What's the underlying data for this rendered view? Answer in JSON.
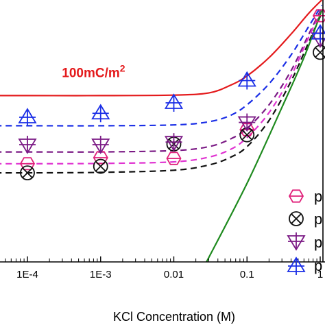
{
  "chart_data": {
    "type": "line",
    "xlabel": "KCl Concentration (M)",
    "ylabel": "",
    "xscale": "log",
    "xlim": [
      1e-05,
      1.1
    ],
    "ylim": [
      0,
      10
    ],
    "xticks": [
      {
        "value": 0.0001,
        "label": "1E-4"
      },
      {
        "value": 0.001,
        "label": "1E-3"
      },
      {
        "value": 0.01,
        "label": "0.01"
      },
      {
        "value": 0.1,
        "label": "0.1"
      },
      {
        "value": 1,
        "label": "1"
      }
    ],
    "annotation": {
      "text": "100mC/m",
      "superscript": "2",
      "x": 0.0008,
      "y": 7.05,
      "color": "#e41a1c"
    },
    "series": [
      {
        "kind": "curve",
        "color": "#e41a1c",
        "dash": false,
        "points": [
          [
            1e-05,
            6.35
          ],
          [
            0.0001,
            6.35
          ],
          [
            0.001,
            6.35
          ],
          [
            0.01,
            6.37
          ],
          [
            0.03,
            6.45
          ],
          [
            0.06,
            6.75
          ],
          [
            0.1,
            7.1
          ],
          [
            0.2,
            7.8
          ],
          [
            0.4,
            8.7
          ],
          [
            0.7,
            9.5
          ],
          [
            1.05,
            10.0
          ]
        ]
      },
      {
        "kind": "curve",
        "color": "#1a2ee6",
        "dash": true,
        "points": [
          [
            1e-05,
            5.2
          ],
          [
            0.0001,
            5.2
          ],
          [
            0.001,
            5.2
          ],
          [
            0.01,
            5.23
          ],
          [
            0.03,
            5.35
          ],
          [
            0.06,
            5.6
          ],
          [
            0.1,
            6.0
          ],
          [
            0.2,
            6.8
          ],
          [
            0.4,
            7.9
          ],
          [
            0.7,
            9.0
          ],
          [
            1.05,
            9.8
          ]
        ]
      },
      {
        "kind": "curve",
        "color": "#7b1a85",
        "dash": true,
        "points": [
          [
            1e-05,
            4.2
          ],
          [
            0.0001,
            4.2
          ],
          [
            0.001,
            4.2
          ],
          [
            0.01,
            4.25
          ],
          [
            0.03,
            4.4
          ],
          [
            0.06,
            4.7
          ],
          [
            0.1,
            5.1
          ],
          [
            0.2,
            6.0
          ],
          [
            0.4,
            7.3
          ],
          [
            0.7,
            8.7
          ],
          [
            1.05,
            9.7
          ]
        ]
      },
      {
        "kind": "curve",
        "color": "#e033d1",
        "dash": true,
        "points": [
          [
            1e-05,
            3.75
          ],
          [
            0.0001,
            3.75
          ],
          [
            0.001,
            3.76
          ],
          [
            0.01,
            3.82
          ],
          [
            0.03,
            4.0
          ],
          [
            0.06,
            4.3
          ],
          [
            0.1,
            4.75
          ],
          [
            0.2,
            5.7
          ],
          [
            0.4,
            7.1
          ],
          [
            0.7,
            8.6
          ],
          [
            1.05,
            9.6
          ]
        ]
      },
      {
        "kind": "curve",
        "color": "#111111",
        "dash": true,
        "points": [
          [
            1e-05,
            3.4
          ],
          [
            0.0001,
            3.4
          ],
          [
            0.001,
            3.42
          ],
          [
            0.01,
            3.5
          ],
          [
            0.03,
            3.7
          ],
          [
            0.06,
            4.0
          ],
          [
            0.1,
            4.4
          ],
          [
            0.2,
            5.4
          ],
          [
            0.4,
            6.9
          ],
          [
            0.7,
            8.4
          ],
          [
            1.05,
            9.5
          ]
        ]
      },
      {
        "kind": "curve",
        "color": "#1e8a1e",
        "dash": false,
        "points": [
          [
            0.028,
            0.0
          ],
          [
            0.1,
            3.0
          ],
          [
            0.3,
            5.9
          ],
          [
            0.6,
            7.8
          ],
          [
            1.05,
            9.6
          ]
        ]
      },
      {
        "kind": "points",
        "marker": "hexagon",
        "color": "#e0207a",
        "points": [
          [
            0.0001,
            3.75
          ],
          [
            0.001,
            3.98
          ],
          [
            0.01,
            3.95
          ],
          [
            0.1,
            5.05
          ],
          [
            1,
            9.4
          ]
        ]
      },
      {
        "kind": "points",
        "marker": "circle-x",
        "color": "#111111",
        "points": [
          [
            0.0001,
            3.4
          ],
          [
            0.001,
            3.65
          ],
          [
            0.01,
            4.5
          ],
          [
            0.1,
            4.85
          ],
          [
            1,
            8.0
          ]
        ]
      },
      {
        "kind": "points",
        "marker": "tri-down",
        "color": "#7b1a85",
        "points": [
          [
            0.0001,
            4.45
          ],
          [
            0.001,
            4.45
          ],
          [
            0.01,
            4.55
          ],
          [
            0.1,
            5.3
          ],
          [
            1,
            8.5
          ]
        ]
      },
      {
        "kind": "points",
        "marker": "tri-up",
        "color": "#1a2ee6",
        "points": [
          [
            0.0001,
            5.55
          ],
          [
            0.001,
            5.7
          ],
          [
            0.01,
            6.1
          ],
          [
            0.1,
            6.95
          ],
          [
            1,
            8.75
          ]
        ]
      }
    ],
    "legend": {
      "placement": "bottom-right",
      "entries": [
        {
          "marker": "hexagon",
          "color": "#e0207a",
          "label": "p"
        },
        {
          "marker": "circle-x",
          "color": "#111111",
          "label": "p"
        },
        {
          "marker": "tri-down",
          "color": "#7b1a85",
          "label": "p"
        },
        {
          "marker": "tri-up",
          "color": "#1a2ee6",
          "label": "p"
        }
      ]
    }
  }
}
